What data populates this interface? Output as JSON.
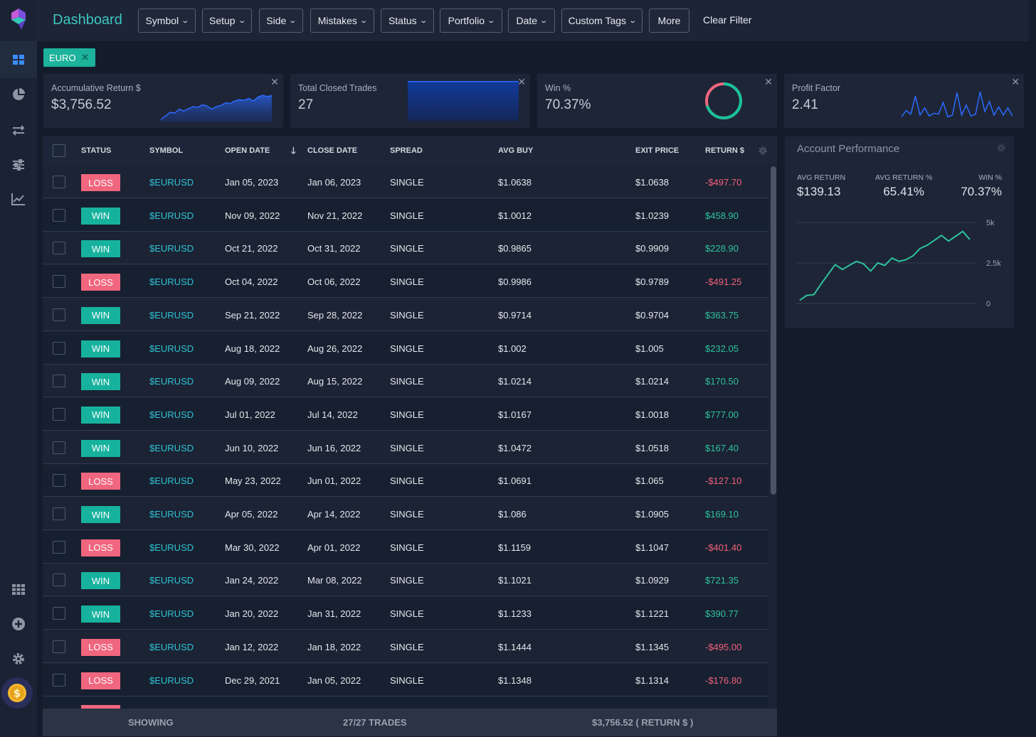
{
  "app": {
    "title": "Dashboard"
  },
  "filters": [
    "Symbol",
    "Setup",
    "Side",
    "Mistakes",
    "Status",
    "Portfolio",
    "Date",
    "Custom Tags"
  ],
  "more_label": "More",
  "clear_label": "Clear Filter",
  "active_filter": {
    "label": "EURO",
    "remove": "✕"
  },
  "cards": [
    {
      "label": "Accumulative Return $",
      "value": "$3,756.52"
    },
    {
      "label": "Total Closed Trades",
      "value": "27"
    },
    {
      "label": "Win %",
      "value": "70.37%",
      "win_fraction": 0.7037
    },
    {
      "label": "Profit Factor",
      "value": "2.41"
    }
  ],
  "table": {
    "headers": [
      "STATUS",
      "SYMBOL",
      "OPEN DATE",
      "CLOSE DATE",
      "SPREAD",
      "AVG BUY",
      "EXIT PRICE",
      "RETURN $"
    ],
    "sort_column": "CLOSE DATE",
    "rows": [
      {
        "status": "LOSS",
        "symbol": "$EURUSD",
        "open": "Jan 05, 2023",
        "close": "Jan 06, 2023",
        "spread": "SINGLE",
        "avg_buy": "$1.0638",
        "exit": "$1.0638",
        "ret": "-$497.70"
      },
      {
        "status": "WIN",
        "symbol": "$EURUSD",
        "open": "Nov 09, 2022",
        "close": "Nov 21, 2022",
        "spread": "SINGLE",
        "avg_buy": "$1.0012",
        "exit": "$1.0239",
        "ret": "$458.90"
      },
      {
        "status": "WIN",
        "symbol": "$EURUSD",
        "open": "Oct 21, 2022",
        "close": "Oct 31, 2022",
        "spread": "SINGLE",
        "avg_buy": "$0.9865",
        "exit": "$0.9909",
        "ret": "$228.90"
      },
      {
        "status": "LOSS",
        "symbol": "$EURUSD",
        "open": "Oct 04, 2022",
        "close": "Oct 06, 2022",
        "spread": "SINGLE",
        "avg_buy": "$0.9986",
        "exit": "$0.9789",
        "ret": "-$491.25"
      },
      {
        "status": "WIN",
        "symbol": "$EURUSD",
        "open": "Sep 21, 2022",
        "close": "Sep 28, 2022",
        "spread": "SINGLE",
        "avg_buy": "$0.9714",
        "exit": "$0.9704",
        "ret": "$363.75"
      },
      {
        "status": "WIN",
        "symbol": "$EURUSD",
        "open": "Aug 18, 2022",
        "close": "Aug 26, 2022",
        "spread": "SINGLE",
        "avg_buy": "$1.002",
        "exit": "$1.005",
        "ret": "$232.05"
      },
      {
        "status": "WIN",
        "symbol": "$EURUSD",
        "open": "Aug 09, 2022",
        "close": "Aug 15, 2022",
        "spread": "SINGLE",
        "avg_buy": "$1.0214",
        "exit": "$1.0214",
        "ret": "$170.50"
      },
      {
        "status": "WIN",
        "symbol": "$EURUSD",
        "open": "Jul 01, 2022",
        "close": "Jul 14, 2022",
        "spread": "SINGLE",
        "avg_buy": "$1.0167",
        "exit": "$1.0018",
        "ret": "$777.00"
      },
      {
        "status": "WIN",
        "symbol": "$EURUSD",
        "open": "Jun 10, 2022",
        "close": "Jun 16, 2022",
        "spread": "SINGLE",
        "avg_buy": "$1.0472",
        "exit": "$1.0518",
        "ret": "$167.40"
      },
      {
        "status": "LOSS",
        "symbol": "$EURUSD",
        "open": "May 23, 2022",
        "close": "Jun 01, 2022",
        "spread": "SINGLE",
        "avg_buy": "$1.0691",
        "exit": "$1.065",
        "ret": "-$127.10"
      },
      {
        "status": "WIN",
        "symbol": "$EURUSD",
        "open": "Apr 05, 2022",
        "close": "Apr 14, 2022",
        "spread": "SINGLE",
        "avg_buy": "$1.086",
        "exit": "$1.0905",
        "ret": "$169.10"
      },
      {
        "status": "LOSS",
        "symbol": "$EURUSD",
        "open": "Mar 30, 2022",
        "close": "Apr 01, 2022",
        "spread": "SINGLE",
        "avg_buy": "$1.1159",
        "exit": "$1.1047",
        "ret": "-$401.40"
      },
      {
        "status": "WIN",
        "symbol": "$EURUSD",
        "open": "Jan 24, 2022",
        "close": "Mar 08, 2022",
        "spread": "SINGLE",
        "avg_buy": "$1.1021",
        "exit": "$1.0929",
        "ret": "$721.35"
      },
      {
        "status": "WIN",
        "symbol": "$EURUSD",
        "open": "Jan 20, 2022",
        "close": "Jan 31, 2022",
        "spread": "SINGLE",
        "avg_buy": "$1.1233",
        "exit": "$1.1221",
        "ret": "$390.77"
      },
      {
        "status": "LOSS",
        "symbol": "$EURUSD",
        "open": "Jan 12, 2022",
        "close": "Jan 18, 2022",
        "spread": "SINGLE",
        "avg_buy": "$1.1444",
        "exit": "$1.1345",
        "ret": "-$495.00"
      },
      {
        "status": "LOSS",
        "symbol": "$EURUSD",
        "open": "Dec 29, 2021",
        "close": "Jan 05, 2022",
        "spread": "SINGLE",
        "avg_buy": "$1.1348",
        "exit": "$1.1314",
        "ret": "-$176.80"
      }
    ]
  },
  "footer": {
    "showing": "SHOWING",
    "count": "27/27 TRADES",
    "total": "$3,756.52 ( RETURN $ )"
  },
  "performance": {
    "title": "Account Performance",
    "stats": [
      {
        "label": "AVG RETURN",
        "value": "$139.13"
      },
      {
        "label": "AVG RETURN %",
        "value": "65.41%"
      },
      {
        "label": "WIN %",
        "value": "70.37%"
      }
    ],
    "y_ticks": [
      "5k",
      "2.5k",
      "0"
    ]
  },
  "chart_data": [
    {
      "type": "line",
      "title": "Account Performance",
      "ylim": [
        0,
        5000
      ],
      "y_ticks": [
        "5k",
        "2.5k",
        "0"
      ],
      "grid": true,
      "series": [
        {
          "values": [
            200,
            500,
            550,
            1200,
            1800,
            2400,
            2100,
            2350,
            2600,
            2450,
            2000,
            2500,
            2350,
            2800,
            2600,
            2700,
            2950,
            3400,
            3600,
            3900,
            4200,
            3850,
            4150,
            4450,
            3950
          ]
        }
      ]
    },
    {
      "type": "area",
      "title": "Accumulative Return $",
      "series": [
        {
          "values": [
            0,
            0.5,
            1.1,
            1.0,
            1.6,
            1.3,
            1.7,
            2.0,
            1.9,
            2.3,
            2.1,
            1.6,
            2.0,
            2.2,
            2.6,
            2.5,
            2.9,
            3.1,
            3.0,
            3.3,
            2.9,
            3.5,
            3.8,
            3.6,
            3.75
          ]
        }
      ]
    },
    {
      "type": "line",
      "title": "Profit Factor",
      "series": [
        {
          "values": [
            0.2,
            0.9,
            0.5,
            2.5,
            0.4,
            1.2,
            0.3,
            0.6,
            0.5,
            1.8,
            0.2,
            0.4,
            2.9,
            0.4,
            1.5,
            0.3,
            0.5,
            3.0,
            0.8,
            1.9,
            0.4,
            1.3,
            0.4,
            1.2,
            0.3
          ]
        }
      ]
    }
  ]
}
